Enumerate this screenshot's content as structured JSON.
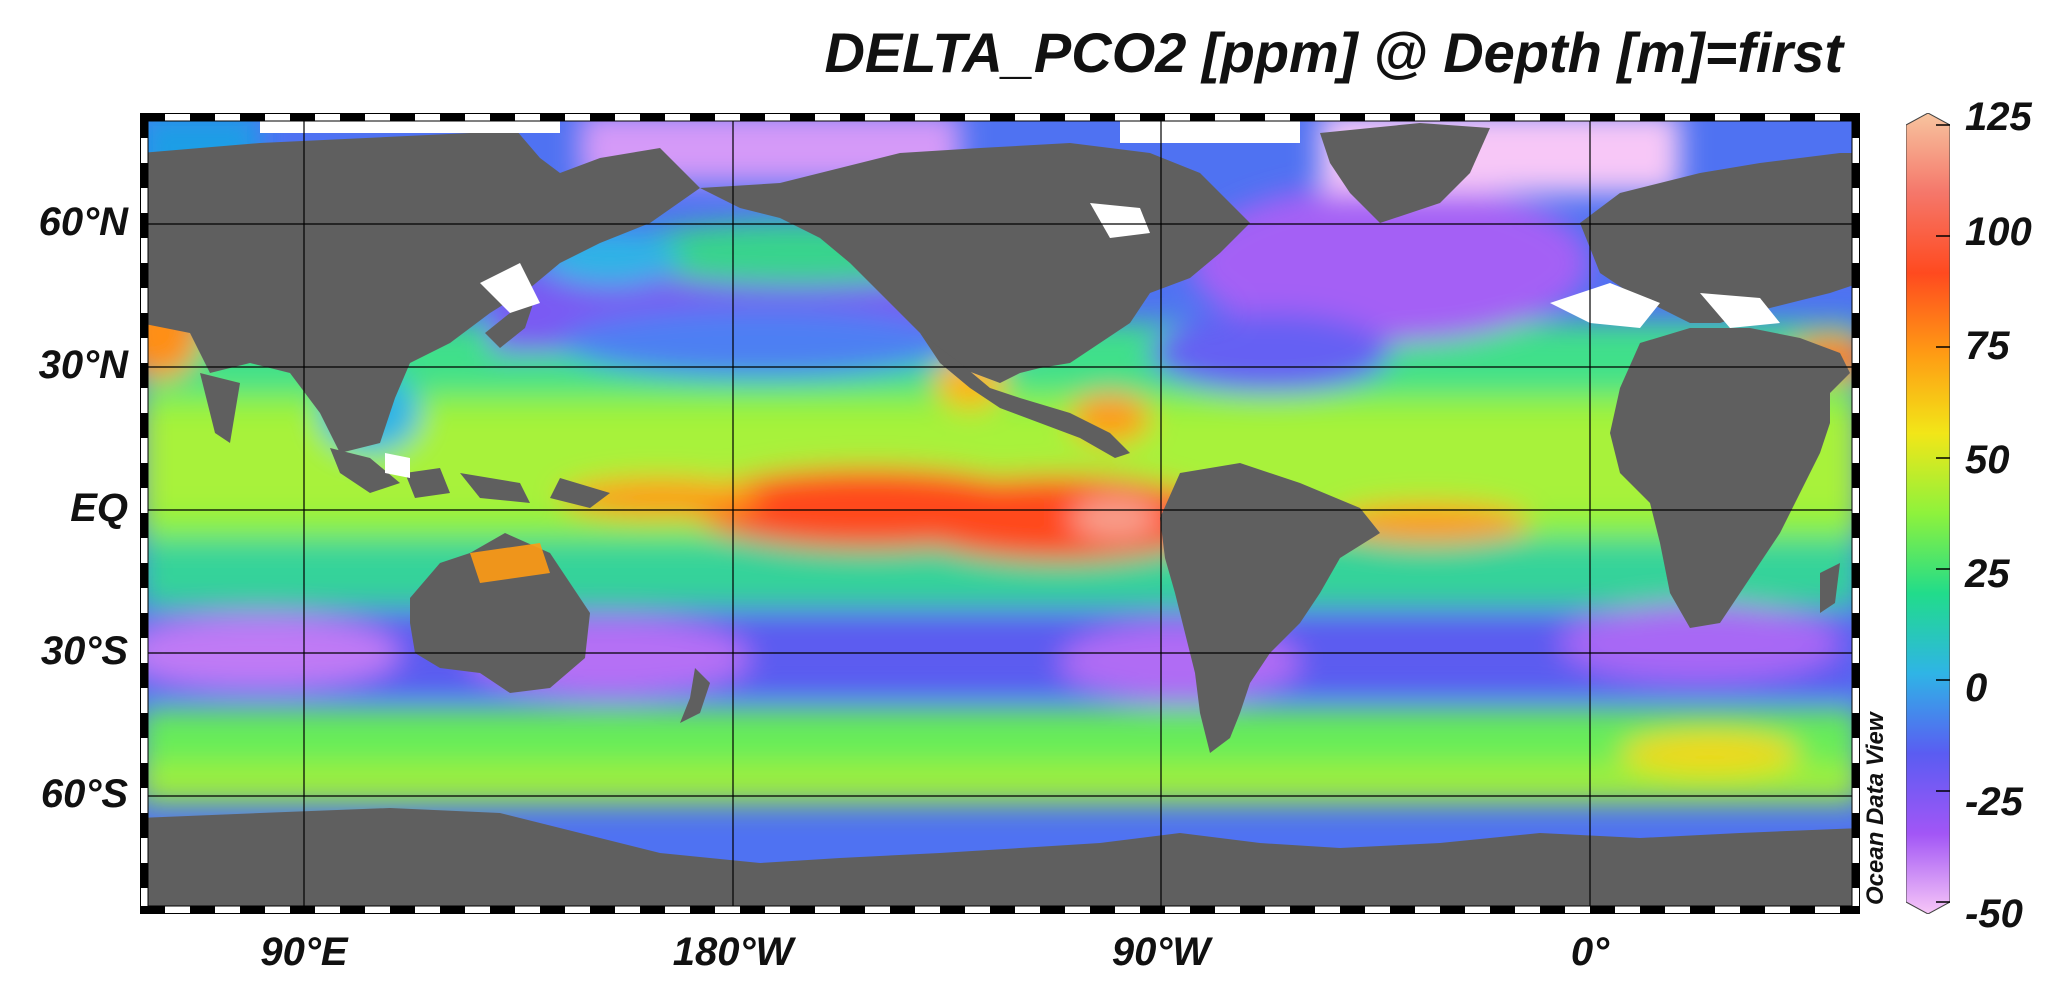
{
  "title": "DELTA_PCO2 [ppm] @ Depth [m]=first",
  "watermark": "Ocean Data View",
  "lat_labels": [
    "60°N",
    "30°N",
    "EQ",
    "30°S",
    "60°S"
  ],
  "lon_labels": [
    "90°E",
    "180°W",
    "90°W",
    "0°"
  ],
  "colorbar": {
    "ticks": [
      "125",
      "100",
      "75",
      "50",
      "25",
      "0",
      "-25",
      "-50"
    ],
    "min": -50,
    "max": 125,
    "colors": [
      "#f7c7f7",
      "#a256f6",
      "#5a5cf2",
      "#2fb4e6",
      "#21dc8b",
      "#8ef23c",
      "#f2e618",
      "#ff9b14",
      "#ff4a1f",
      "#f5776a",
      "#f7c49f"
    ]
  },
  "colors": {
    "land": "#5f5f5f",
    "no_data": "#ffffff",
    "grid": "#000000"
  }
}
